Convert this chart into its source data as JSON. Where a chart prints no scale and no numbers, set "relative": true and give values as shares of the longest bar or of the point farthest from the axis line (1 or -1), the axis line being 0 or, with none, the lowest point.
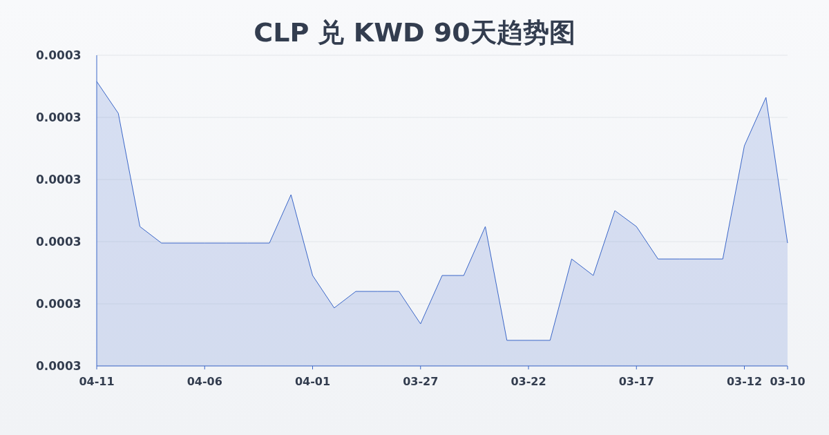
{
  "chart_data": {
    "type": "area",
    "title": "CLP 兑 KWD 90天趋势图",
    "categories": [
      "04-11",
      null,
      null,
      null,
      null,
      "04-06",
      null,
      null,
      null,
      null,
      "04-01",
      null,
      null,
      null,
      null,
      "03-27",
      null,
      null,
      null,
      null,
      "03-22",
      null,
      null,
      null,
      null,
      "03-17",
      null,
      null,
      null,
      null,
      "03-12",
      null,
      "03-10"
    ],
    "values": [
      1,
      0.888,
      0.49,
      0.432,
      0.432,
      0.432,
      0.432,
      0.432,
      0.432,
      0.602,
      0.318,
      0.204,
      0.262,
      0.262,
      0.262,
      0.148,
      0.318,
      0.318,
      0.49,
      0.09,
      0.09,
      0.09,
      0.376,
      0.318,
      0.546,
      0.49,
      0.376,
      0.376,
      0.376,
      0.376,
      0.774,
      0.944,
      0.432
    ],
    "color": "#3a66c8",
    "relative": true,
    "annotations": [
      "0.0003",
      "0.0003",
      "0.0003",
      "0.0003",
      "0.0003",
      "0.0003"
    ],
    "grid": "y"
  }
}
